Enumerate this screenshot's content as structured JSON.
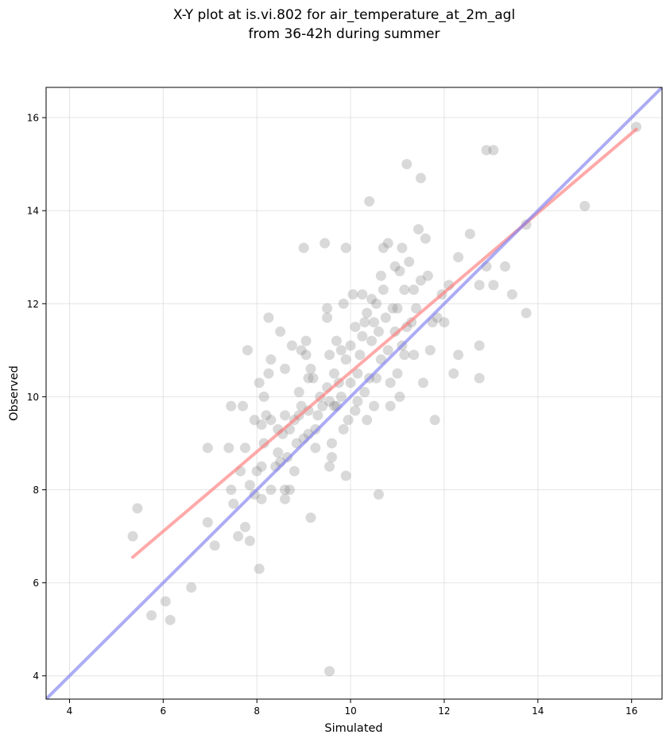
{
  "chart_data": {
    "type": "scatter",
    "title_lines": [
      "X-Y plot at is.vi.802 for air_temperature_at_2m_agl",
      "from 36-42h during summer"
    ],
    "xlabel": "Simulated",
    "ylabel": "Observed",
    "xlim": [
      3.5,
      16.65
    ],
    "ylim": [
      3.5,
      16.65
    ],
    "xticks": [
      4,
      6,
      8,
      10,
      12,
      14,
      16
    ],
    "yticks": [
      4,
      6,
      8,
      10,
      12,
      14,
      16
    ],
    "grid": true,
    "colors": {
      "points": "#808080",
      "regression_line": "#ff7b7b",
      "identity_line": "#7f7fef"
    },
    "regression_line": {
      "x": [
        5.35,
        16.1
      ],
      "y": [
        6.55,
        15.75
      ]
    },
    "identity_line": {
      "x": [
        3.5,
        16.65
      ],
      "y": [
        3.5,
        16.65
      ]
    },
    "points": [
      [
        5.35,
        7.0
      ],
      [
        5.45,
        7.6
      ],
      [
        5.75,
        5.3
      ],
      [
        6.05,
        5.6
      ],
      [
        6.15,
        5.2
      ],
      [
        6.6,
        5.9
      ],
      [
        6.95,
        7.3
      ],
      [
        6.95,
        8.9
      ],
      [
        7.1,
        6.8
      ],
      [
        7.4,
        8.9
      ],
      [
        7.45,
        8.0
      ],
      [
        7.45,
        9.8
      ],
      [
        7.5,
        7.7
      ],
      [
        7.6,
        7.0
      ],
      [
        7.65,
        8.4
      ],
      [
        7.7,
        9.8
      ],
      [
        7.75,
        7.2
      ],
      [
        7.75,
        8.9
      ],
      [
        7.8,
        11.0
      ],
      [
        7.85,
        6.9
      ],
      [
        7.85,
        8.1
      ],
      [
        7.95,
        9.5
      ],
      [
        7.95,
        7.9
      ],
      [
        8.0,
        8.4
      ],
      [
        8.05,
        6.3
      ],
      [
        8.05,
        10.3
      ],
      [
        8.1,
        9.4
      ],
      [
        8.1,
        8.5
      ],
      [
        8.1,
        7.8
      ],
      [
        8.15,
        9.0
      ],
      [
        8.15,
        10.0
      ],
      [
        8.2,
        9.6
      ],
      [
        8.25,
        10.5
      ],
      [
        8.25,
        11.7
      ],
      [
        8.3,
        9.5
      ],
      [
        8.3,
        10.8
      ],
      [
        8.3,
        8.0
      ],
      [
        8.4,
        8.5
      ],
      [
        8.45,
        8.8
      ],
      [
        8.45,
        9.3
      ],
      [
        8.5,
        11.4
      ],
      [
        8.5,
        8.6
      ],
      [
        8.55,
        9.2
      ],
      [
        8.6,
        10.6
      ],
      [
        8.6,
        9.6
      ],
      [
        8.6,
        8.0
      ],
      [
        8.6,
        7.8
      ],
      [
        8.65,
        8.7
      ],
      [
        8.7,
        9.3
      ],
      [
        8.7,
        8.0
      ],
      [
        8.75,
        11.1
      ],
      [
        8.8,
        9.5
      ],
      [
        8.8,
        8.4
      ],
      [
        8.85,
        9.0
      ],
      [
        8.9,
        9.6
      ],
      [
        8.9,
        10.1
      ],
      [
        8.95,
        9.8
      ],
      [
        8.95,
        11.0
      ],
      [
        9.0,
        9.1
      ],
      [
        9.0,
        13.2
      ],
      [
        9.05,
        10.9
      ],
      [
        9.05,
        11.2
      ],
      [
        9.1,
        10.4
      ],
      [
        9.1,
        9.7
      ],
      [
        9.1,
        9.2
      ],
      [
        9.15,
        10.6
      ],
      [
        9.15,
        7.4
      ],
      [
        9.2,
        10.4
      ],
      [
        9.25,
        9.3
      ],
      [
        9.25,
        8.9
      ],
      [
        9.3,
        9.6
      ],
      [
        9.35,
        10.0
      ],
      [
        9.4,
        9.8
      ],
      [
        9.45,
        13.3
      ],
      [
        9.5,
        10.2
      ],
      [
        9.5,
        11.9
      ],
      [
        9.5,
        11.7
      ],
      [
        9.55,
        9.9
      ],
      [
        9.55,
        10.9
      ],
      [
        9.55,
        8.5
      ],
      [
        9.55,
        4.1
      ],
      [
        9.6,
        9.0
      ],
      [
        9.6,
        8.7
      ],
      [
        9.65,
        9.8
      ],
      [
        9.65,
        10.5
      ],
      [
        9.7,
        9.8
      ],
      [
        9.7,
        11.2
      ],
      [
        9.75,
        10.3
      ],
      [
        9.8,
        11.0
      ],
      [
        9.8,
        10.0
      ],
      [
        9.85,
        9.3
      ],
      [
        9.85,
        12.0
      ],
      [
        9.9,
        13.2
      ],
      [
        9.9,
        8.3
      ],
      [
        9.9,
        10.8
      ],
      [
        9.95,
        9.5
      ],
      [
        10.0,
        11.1
      ],
      [
        10.0,
        10.3
      ],
      [
        10.05,
        12.2
      ],
      [
        10.1,
        9.7
      ],
      [
        10.1,
        11.5
      ],
      [
        10.15,
        10.5
      ],
      [
        10.15,
        9.9
      ],
      [
        10.2,
        10.9
      ],
      [
        10.25,
        12.2
      ],
      [
        10.25,
        11.3
      ],
      [
        10.3,
        11.6
      ],
      [
        10.3,
        10.1
      ],
      [
        10.35,
        9.5
      ],
      [
        10.35,
        11.8
      ],
      [
        10.4,
        14.2
      ],
      [
        10.4,
        10.4
      ],
      [
        10.45,
        12.1
      ],
      [
        10.45,
        11.2
      ],
      [
        10.5,
        9.8
      ],
      [
        10.5,
        11.6
      ],
      [
        10.55,
        10.4
      ],
      [
        10.55,
        12.0
      ],
      [
        10.6,
        7.9
      ],
      [
        10.6,
        11.4
      ],
      [
        10.65,
        12.6
      ],
      [
        10.65,
        10.8
      ],
      [
        10.7,
        13.2
      ],
      [
        10.7,
        12.3
      ],
      [
        10.75,
        11.7
      ],
      [
        10.8,
        11.0
      ],
      [
        10.8,
        13.3
      ],
      [
        10.85,
        10.3
      ],
      [
        10.85,
        9.8
      ],
      [
        10.9,
        11.9
      ],
      [
        10.95,
        12.8
      ],
      [
        10.95,
        11.4
      ],
      [
        11.0,
        10.5
      ],
      [
        11.0,
        11.9
      ],
      [
        11.05,
        12.7
      ],
      [
        11.05,
        10.0
      ],
      [
        11.1,
        11.1
      ],
      [
        11.1,
        13.2
      ],
      [
        11.15,
        10.9
      ],
      [
        11.15,
        12.3
      ],
      [
        11.2,
        15.0
      ],
      [
        11.2,
        11.5
      ],
      [
        11.25,
        12.9
      ],
      [
        11.3,
        11.6
      ],
      [
        11.35,
        12.3
      ],
      [
        11.35,
        10.9
      ],
      [
        11.4,
        11.9
      ],
      [
        11.45,
        13.6
      ],
      [
        11.5,
        14.7
      ],
      [
        11.5,
        12.5
      ],
      [
        11.55,
        10.3
      ],
      [
        11.6,
        13.4
      ],
      [
        11.65,
        12.6
      ],
      [
        11.7,
        11.0
      ],
      [
        11.75,
        11.6
      ],
      [
        11.8,
        9.5
      ],
      [
        11.85,
        11.7
      ],
      [
        11.95,
        12.2
      ],
      [
        12.0,
        11.6
      ],
      [
        12.1,
        12.4
      ],
      [
        12.2,
        10.5
      ],
      [
        12.3,
        10.9
      ],
      [
        12.3,
        13.0
      ],
      [
        12.55,
        13.5
      ],
      [
        12.75,
        12.4
      ],
      [
        12.75,
        11.1
      ],
      [
        12.75,
        10.4
      ],
      [
        12.9,
        12.8
      ],
      [
        12.9,
        15.3
      ],
      [
        13.05,
        15.3
      ],
      [
        13.05,
        12.4
      ],
      [
        13.3,
        12.8
      ],
      [
        13.45,
        12.2
      ],
      [
        13.75,
        13.7
      ],
      [
        13.75,
        11.8
      ],
      [
        15.0,
        14.1
      ],
      [
        16.1,
        15.8
      ]
    ]
  }
}
